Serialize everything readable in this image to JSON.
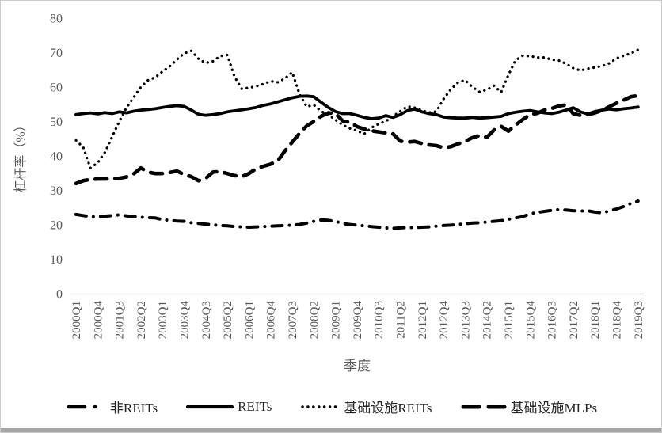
{
  "chart_data": {
    "type": "line",
    "title": "",
    "xlabel": "季度",
    "ylabel": "杠杆率（%）",
    "ylim": [
      0,
      80
    ],
    "y_ticks": [
      0,
      10,
      20,
      30,
      40,
      50,
      60,
      70,
      80
    ],
    "x_tick_labels": [
      "2000Q1",
      "2000Q4",
      "2001Q3",
      "2002Q2",
      "2003Q1",
      "2003Q4",
      "2004Q3",
      "2005Q2",
      "2006Q1",
      "2006Q4",
      "2007Q3",
      "2008Q2",
      "2009Q1",
      "2009Q4",
      "2010Q3",
      "2011Q2",
      "2012Q1",
      "2012Q4",
      "2013Q3",
      "2014Q2",
      "2015Q1",
      "2015Q4",
      "2016Q3",
      "2017Q2",
      "2018Q1",
      "2018Q4",
      "2019Q3"
    ],
    "x_tick_step_quarters": 3,
    "x_range": [
      "2000Q1",
      "2019Q3"
    ],
    "n_points": 79,
    "grid": false,
    "legend_position": "bottom",
    "series": [
      {
        "name": "非REITs",
        "style": "dash-dot",
        "values": [
          23,
          22.7,
          22.4,
          22.3,
          22.5,
          22.7,
          22.9,
          22.6,
          22.4,
          22.2,
          22.1,
          22,
          21.5,
          21.3,
          21.1,
          21,
          20.6,
          20.4,
          20.2,
          20,
          19.8,
          19.7,
          19.5,
          19.4,
          19.3,
          19.4,
          19.5,
          19.6,
          19.7,
          19.8,
          19.9,
          20.1,
          20.5,
          21,
          21.4,
          21.3,
          21,
          20.4,
          20.1,
          19.9,
          19.7,
          19.5,
          19.3,
          19.1,
          19,
          19.1,
          19.2,
          19.2,
          19.3,
          19.4,
          19.6,
          19.8,
          19.9,
          20.1,
          20.3,
          20.5,
          20.6,
          20.8,
          21,
          21.2,
          21.6,
          22,
          22.4,
          23.2,
          23.6,
          23.9,
          24.2,
          24.4,
          24.3,
          24.1,
          24,
          24.1,
          23.7,
          23.5,
          24,
          24.6,
          25.3,
          26.2,
          26.9
        ]
      },
      {
        "name": "REITs",
        "style": "solid",
        "values": [
          52,
          52.3,
          52.5,
          52.2,
          52.6,
          52.3,
          52.8,
          52.5,
          53,
          53.3,
          53.5,
          53.7,
          54.1,
          54.4,
          54.6,
          54.4,
          53.3,
          52.1,
          51.8,
          52,
          52.3,
          52.8,
          53.1,
          53.4,
          53.7,
          54.1,
          54.7,
          55.1,
          55.7,
          56.3,
          56.9,
          57.3,
          57.4,
          57.2,
          55.6,
          54.1,
          52.9,
          52.3,
          52.3,
          51.8,
          51.2,
          50.8,
          51,
          51.7,
          51.2,
          52,
          53.2,
          53.6,
          52.8,
          52.3,
          52,
          51.3,
          51.1,
          51,
          51,
          51.2,
          51,
          51.1,
          51.3,
          51.5,
          52.3,
          52.7,
          53,
          53.2,
          52.8,
          52.5,
          52.3,
          52.7,
          53.3,
          54,
          52.8,
          52.2,
          52.9,
          53.3,
          53.6,
          53.4,
          53.7,
          53.9,
          54.2
        ]
      },
      {
        "name": "基础设施REITs",
        "style": "dotted",
        "values": [
          44.5,
          42.5,
          36.5,
          38,
          41,
          45.5,
          50,
          54,
          57,
          60,
          62,
          62.8,
          64.5,
          66,
          68,
          69.8,
          70.5,
          68.2,
          67,
          67.5,
          69,
          69.3,
          63,
          59.5,
          59.8,
          60.2,
          60.9,
          61.7,
          61.4,
          62.5,
          64.3,
          58,
          54.3,
          54.8,
          53,
          52,
          50.5,
          49,
          48,
          47.3,
          46.4,
          48.2,
          49.3,
          50.1,
          51.5,
          53,
          54.4,
          54,
          53.2,
          52.6,
          52.9,
          56.5,
          59.3,
          61.3,
          62,
          60,
          58.6,
          59.2,
          60.4,
          58.5,
          63.5,
          67.8,
          69.1,
          69,
          68.6,
          68.6,
          68,
          67.7,
          66.8,
          65.5,
          64.8,
          65.3,
          65.7,
          66.1,
          66.9,
          68.3,
          69.1,
          69.8,
          70.8
        ]
      },
      {
        "name": "基础设施MLPs",
        "style": "dashed",
        "values": [
          32,
          32.8,
          33.2,
          33.3,
          33.3,
          33.4,
          33.5,
          33.9,
          34.8,
          36.5,
          35.3,
          34.9,
          34.9,
          35.2,
          35.6,
          34.6,
          34,
          32.8,
          33.5,
          35.3,
          35.5,
          34.9,
          34.3,
          34,
          34.9,
          36.3,
          37,
          37.6,
          38.6,
          41.5,
          44,
          46.5,
          48.7,
          50,
          51.5,
          52.5,
          52.3,
          50.2,
          49.8,
          48.5,
          47.8,
          47.3,
          47,
          46.7,
          46.4,
          44.3,
          44,
          44.2,
          43.6,
          43.2,
          43,
          42.4,
          42.7,
          43.5,
          44.2,
          45.3,
          45.9,
          45.4,
          47.5,
          48.6,
          47.2,
          49,
          50.6,
          52,
          52.4,
          53.3,
          53.8,
          54.5,
          54.8,
          52.3,
          51.8,
          52,
          52.5,
          53.2,
          54.3,
          55.3,
          56.2,
          57.2,
          57.5
        ]
      }
    ]
  },
  "colors": {
    "line": "#000000",
    "axis_text": "#595959",
    "axis_line": "#d0d0d0",
    "legend_text": "#262626",
    "bottom_bar": "#a6a6a6",
    "border": "#cbcbcb"
  }
}
